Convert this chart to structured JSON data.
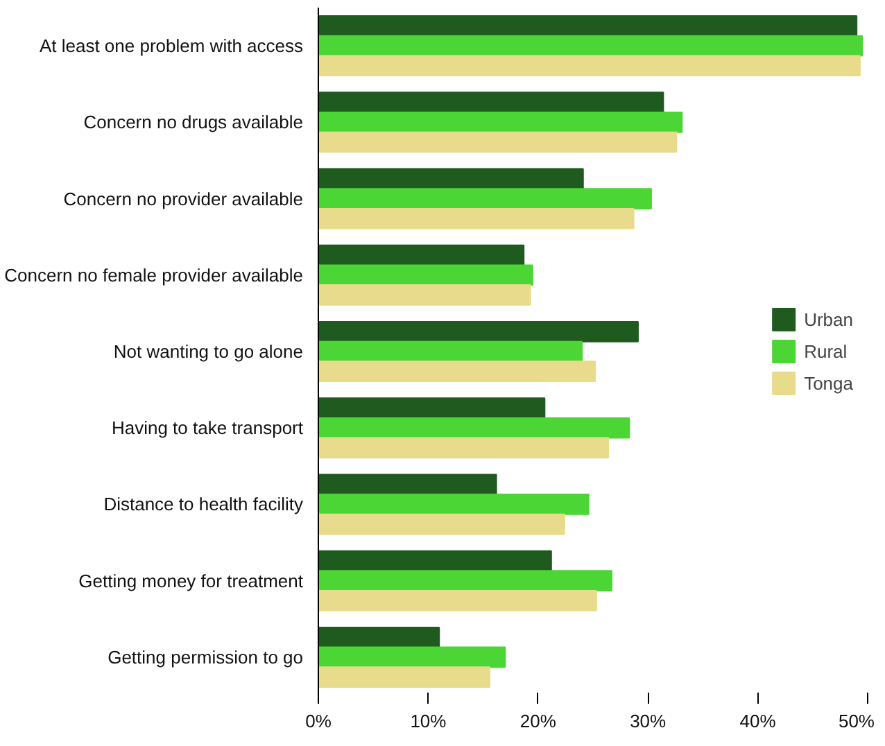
{
  "chart_data": {
    "type": "bar",
    "orientation": "horizontal",
    "categories": [
      "At least one problem with access",
      "Concern no drugs available",
      "Concern no provider available",
      "Concern no female provider available",
      "Not wanting to go alone",
      "Having to take transport",
      "Distance to health facility",
      "Getting money for treatment",
      "Getting permission to go"
    ],
    "series": [
      {
        "name": "Urban",
        "color": "#1f5a1f",
        "values": [
          49.0,
          31.4,
          24.1,
          18.7,
          29.1,
          20.6,
          16.2,
          21.2,
          11.0
        ]
      },
      {
        "name": "Rural",
        "color": "#4cd636",
        "values": [
          49.5,
          33.1,
          30.3,
          19.5,
          24.0,
          28.3,
          24.6,
          26.7,
          17.0
        ]
      },
      {
        "name": "Tonga",
        "color": "#e8dc8c",
        "values": [
          49.3,
          32.6,
          28.7,
          19.3,
          25.2,
          26.4,
          22.4,
          25.3,
          15.6
        ]
      }
    ],
    "xlim": [
      0,
      50
    ],
    "xticks": [
      {
        "value": 0,
        "label": "0%"
      },
      {
        "value": 10,
        "label": "10%"
      },
      {
        "value": 20,
        "label": "20%"
      },
      {
        "value": 30,
        "label": "30%"
      },
      {
        "value": 40,
        "label": "40%"
      },
      {
        "value": 50,
        "label": "50%"
      }
    ],
    "grid": false,
    "legend": "right"
  }
}
